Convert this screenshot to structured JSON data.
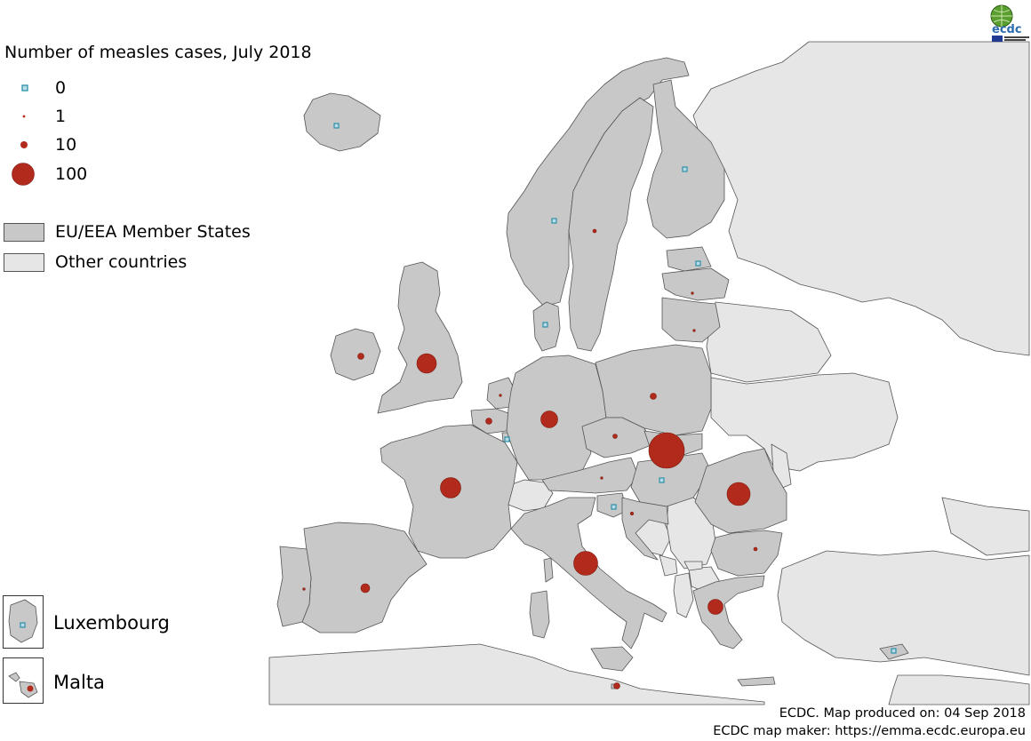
{
  "title": "Number of measles cases, July 2018",
  "legend": {
    "sizes": [
      {
        "label": "0",
        "symbol": "zero-square"
      },
      {
        "label": "1",
        "symbol": "circle-small"
      },
      {
        "label": "10",
        "symbol": "circle-medium"
      },
      {
        "label": "100",
        "symbol": "circle-large"
      }
    ],
    "areas": [
      {
        "label": "EU/EEA Member States",
        "fill": "#c8c8c8"
      },
      {
        "label": "Other countries",
        "fill": "#e6e6e6"
      }
    ]
  },
  "insets": {
    "luxembourg": "Luxembourg",
    "malta": "Malta"
  },
  "footer": {
    "credit": "ECDC. Map produced on: 04 Sep 2018",
    "mapmaker": "ECDC map maker: https://emma.ecdc.europa.eu"
  },
  "logo": {
    "text": "ecdc"
  },
  "colors": {
    "eu_fill": "#c8c8c8",
    "other_fill": "#e6e6e6",
    "border": "#555555",
    "case_marker": "#b22a1b",
    "zero_marker_fill": "#b9dde8",
    "zero_marker_stroke": "#2c8fa8"
  }
}
